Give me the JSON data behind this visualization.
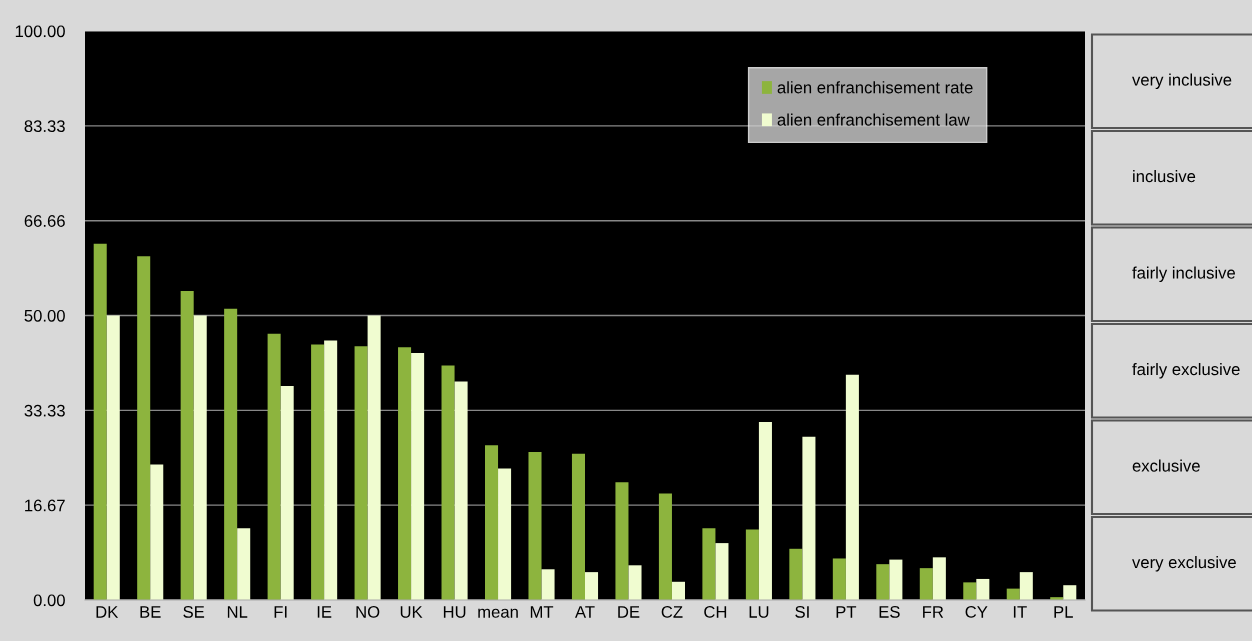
{
  "chart_data": {
    "type": "bar",
    "categories": [
      "DK",
      "BE",
      "SE",
      "NL",
      "FI",
      "IE",
      "NO",
      "UK",
      "HU",
      "mean",
      "MT",
      "AT",
      "DE",
      "CZ",
      "CH",
      "LU",
      "SI",
      "PT",
      "ES",
      "FR",
      "CY",
      "IT",
      "PL"
    ],
    "series": [
      {
        "name": "alien enfranchisement rate",
        "color": "#8db43e",
        "values": [
          62.6,
          60.4,
          54.3,
          51.2,
          46.8,
          44.9,
          44.6,
          44.4,
          41.2,
          27.2,
          26.0,
          25.7,
          20.7,
          18.7,
          12.6,
          12.4,
          9.0,
          7.3,
          6.3,
          5.6,
          3.1,
          2.0,
          0.5
        ]
      },
      {
        "name": "alien enfranchisement law",
        "color": "#f0fcd0",
        "values": [
          50.0,
          23.8,
          50.0,
          12.6,
          37.6,
          45.6,
          50.0,
          43.4,
          38.4,
          23.1,
          5.4,
          4.9,
          6.1,
          3.2,
          10.0,
          31.3,
          28.7,
          39.6,
          7.1,
          7.5,
          3.7,
          4.9,
          2.6
        ]
      }
    ],
    "ylim": [
      0,
      100
    ],
    "yticks": [
      {
        "value": 0,
        "label": "0.00"
      },
      {
        "value": 16.67,
        "label": "16.67"
      },
      {
        "value": 33.33,
        "label": "33.33"
      },
      {
        "value": 50,
        "label": "50.00"
      },
      {
        "value": 66.66,
        "label": "66.66"
      },
      {
        "value": 83.33,
        "label": "83.33"
      },
      {
        "value": 100,
        "label": "100.00"
      }
    ],
    "grid": "y",
    "legend": "top right",
    "annotations": [
      "very inclusive",
      "inclusive",
      "fairly inclusive",
      "fairly exclusive",
      "exclusive",
      "very exclusive"
    ]
  }
}
